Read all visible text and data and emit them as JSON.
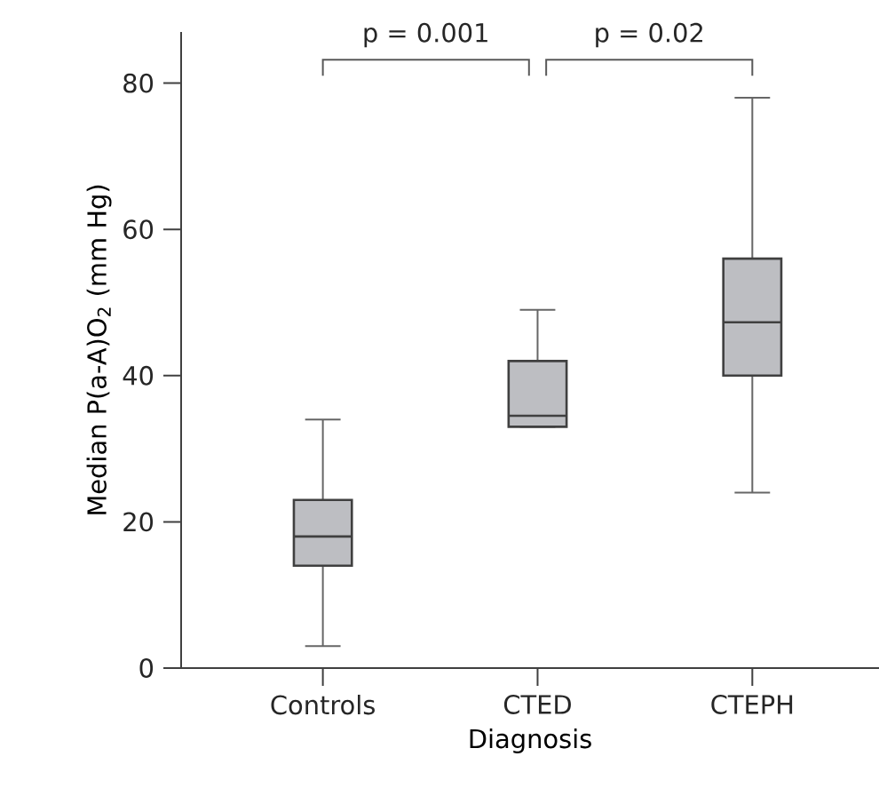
{
  "chart_data": {
    "type": "box",
    "xlabel": "Diagnosis",
    "ylabel": "Median P(a-A)O$_{2}$ (mm Hg)",
    "categories": [
      "Controls",
      "CTED",
      "CTEPH"
    ],
    "boxes": [
      {
        "low": 3,
        "q1": 14,
        "median": 18,
        "q3": 23,
        "high": 34
      },
      {
        "low": 33,
        "q1": 33,
        "median": 34.5,
        "q3": 42,
        "high": 49
      },
      {
        "low": 24,
        "q1": 40,
        "median": 47.3,
        "q3": 56,
        "high": 78
      }
    ],
    "color": "#bdbec2",
    "ylim": [
      0,
      87
    ],
    "yticks": [
      0,
      20,
      40,
      60,
      80
    ],
    "grid": false,
    "annotations": [
      "p = 0.001",
      "p = 0.02"
    ]
  }
}
